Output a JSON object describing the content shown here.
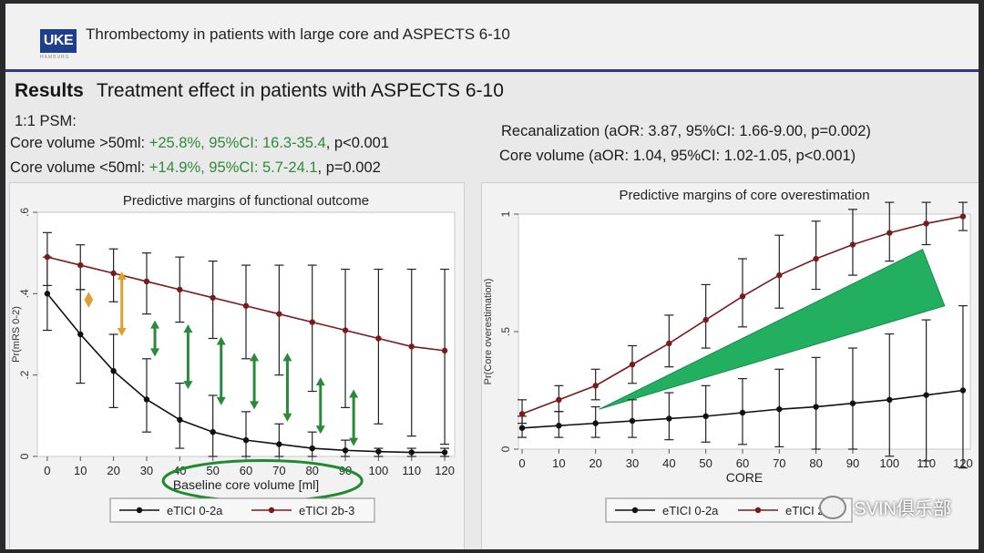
{
  "header": {
    "logo_text": "UKE",
    "logo_subtext": "HAMBURG",
    "title": "Thrombectomy in patients with large core and ASPECTS 6-10"
  },
  "section": {
    "label": "Results",
    "title": "Treatment effect in patients with ASPECTS 6-10"
  },
  "left_stats": {
    "psm": "1:1 PSM:",
    "line1_prefix": "Core volume >50ml: ",
    "line1_green": "+25.8%, 95%CI: 16.3-35.4",
    "line1_suffix": ", p<0.001",
    "line2_prefix": "Core volume <50ml: ",
    "line2_green": "+14.9%, 95%CI: 5.7-24.1",
    "line2_suffix": ", p=0.002"
  },
  "right_stats": {
    "line1": "Recanalization (aOR: 3.87, 95%CI: 1.66-9.00, p=0.002)",
    "line2": "Core volume (aOR: 1.04, 95%CI: 1.02-1.05, p<0.001)"
  },
  "watermark": {
    "text": "SVIN俱乐部"
  },
  "colors": {
    "series_low": "#111111",
    "series_high": "#7a1a1a",
    "arrow_orange": "#e0a030",
    "arrow_green": "#2a8a3a",
    "wedge": "#22b060",
    "ellipse": "#1f8a2f"
  },
  "chart_data": [
    {
      "type": "line",
      "title": "Predictive margins of functional outcome",
      "xlabel": "Baseline core volume [ml]",
      "ylabel": "Pr(mRS 0-2)",
      "x": [
        0,
        10,
        20,
        30,
        40,
        50,
        60,
        70,
        80,
        90,
        100,
        110,
        120
      ],
      "xticks": [
        "0",
        "10",
        "20",
        "30",
        "40",
        "50",
        "60",
        "70",
        "80",
        "90",
        "100",
        "110",
        "120"
      ],
      "yticks": [
        "0",
        ".2",
        ".4",
        ".6"
      ],
      "xlim": [
        -3,
        123
      ],
      "ylim": [
        0,
        0.6
      ],
      "series": [
        {
          "name": "eTICI 0-2a",
          "values": [
            0.4,
            0.3,
            0.21,
            0.14,
            0.09,
            0.06,
            0.04,
            0.03,
            0.02,
            0.015,
            0.012,
            0.01,
            0.01
          ],
          "lower": [
            0.31,
            0.18,
            0.12,
            0.06,
            0.02,
            0.0,
            0.0,
            0.0,
            0.0,
            0.0,
            0.0,
            0.0,
            0.0
          ],
          "upper": [
            0.49,
            0.41,
            0.3,
            0.24,
            0.18,
            0.15,
            0.11,
            0.08,
            0.06,
            0.04,
            0.02,
            0.02,
            0.02
          ]
        },
        {
          "name": "eTICI 2b-3",
          "values": [
            0.49,
            0.47,
            0.45,
            0.43,
            0.41,
            0.39,
            0.37,
            0.35,
            0.33,
            0.31,
            0.29,
            0.27,
            0.26
          ],
          "lower": [
            0.42,
            0.41,
            0.38,
            0.35,
            0.33,
            0.29,
            0.24,
            0.2,
            0.16,
            0.12,
            0.08,
            0.05,
            0.03
          ],
          "upper": [
            0.55,
            0.52,
            0.51,
            0.5,
            0.49,
            0.48,
            0.47,
            0.47,
            0.47,
            0.46,
            0.46,
            0.46,
            0.46
          ]
        }
      ],
      "annotations": [
        {
          "type": "double-arrow",
          "x": 12.5,
          "y0": 0.37,
          "y1": 0.4,
          "color": "orange"
        },
        {
          "type": "double-arrow",
          "x": 22.5,
          "y0": 0.3,
          "y1": 0.45,
          "color": "orange"
        },
        {
          "type": "double-arrow",
          "x": 32.5,
          "y0": 0.25,
          "y1": 0.33,
          "color": "green"
        },
        {
          "type": "double-arrow",
          "x": 42.5,
          "y0": 0.17,
          "y1": 0.32,
          "color": "green"
        },
        {
          "type": "double-arrow",
          "x": 52.5,
          "y0": 0.13,
          "y1": 0.29,
          "color": "green"
        },
        {
          "type": "double-arrow",
          "x": 62.5,
          "y0": 0.12,
          "y1": 0.25,
          "color": "green"
        },
        {
          "type": "double-arrow",
          "x": 72.5,
          "y0": 0.09,
          "y1": 0.25,
          "color": "green"
        },
        {
          "type": "double-arrow",
          "x": 82.5,
          "y0": 0.06,
          "y1": 0.19,
          "color": "green"
        },
        {
          "type": "double-arrow",
          "x": 92.5,
          "y0": 0.03,
          "y1": 0.16,
          "color": "green"
        },
        {
          "type": "ellipse",
          "cx": 65,
          "cy": -0.06,
          "rx": 30,
          "ry": 0.05
        }
      ],
      "legend": {
        "placement": "bottom",
        "entries": [
          "eTICI 0-2a",
          "eTICI 2b-3"
        ]
      }
    },
    {
      "type": "line",
      "title": "Predictive margins of core overestimation",
      "xlabel": "CORE",
      "ylabel": "Pr(Core overestimation)",
      "x": [
        0,
        10,
        20,
        30,
        40,
        50,
        60,
        70,
        80,
        90,
        100,
        110,
        120
      ],
      "xticks": [
        "0",
        "10",
        "20",
        "30",
        "40",
        "50",
        "60",
        "70",
        "80",
        "90",
        "100",
        "110",
        "120"
      ],
      "yticks": [
        "0",
        ".5",
        "1"
      ],
      "xlim": [
        -1,
        122
      ],
      "ylim": [
        0,
        1
      ],
      "series": [
        {
          "name": "eTICI 0-2a",
          "values": [
            0.09,
            0.1,
            0.11,
            0.12,
            0.13,
            0.14,
            0.155,
            0.17,
            0.18,
            0.195,
            0.21,
            0.23,
            0.25
          ],
          "lower": [
            0.05,
            0.05,
            0.05,
            0.05,
            0.04,
            0.03,
            0.02,
            0.01,
            0.0,
            0.0,
            -0.03,
            -0.05,
            -0.08
          ],
          "upper": [
            0.14,
            0.16,
            0.18,
            0.21,
            0.24,
            0.27,
            0.3,
            0.34,
            0.39,
            0.43,
            0.49,
            0.55,
            0.61
          ]
        },
        {
          "name": "eTICI 2b-3",
          "values": [
            0.15,
            0.21,
            0.27,
            0.36,
            0.45,
            0.55,
            0.65,
            0.74,
            0.81,
            0.87,
            0.92,
            0.96,
            0.99
          ],
          "lower": [
            0.11,
            0.16,
            0.21,
            0.28,
            0.35,
            0.43,
            0.52,
            0.6,
            0.68,
            0.74,
            0.8,
            0.87,
            0.93
          ],
          "upper": [
            0.21,
            0.27,
            0.34,
            0.44,
            0.57,
            0.7,
            0.81,
            0.91,
            0.97,
            1.02,
            1.05,
            1.05,
            1.05
          ]
        }
      ],
      "annotations": [
        {
          "type": "wedge",
          "points": [
            [
              21,
              0.17
            ],
            [
              109,
              0.85
            ],
            [
              115,
              0.61
            ]
          ]
        }
      ],
      "legend": {
        "placement": "bottom",
        "entries": [
          "eTICI 0-2a",
          "eTICI 2b-3"
        ]
      }
    }
  ]
}
